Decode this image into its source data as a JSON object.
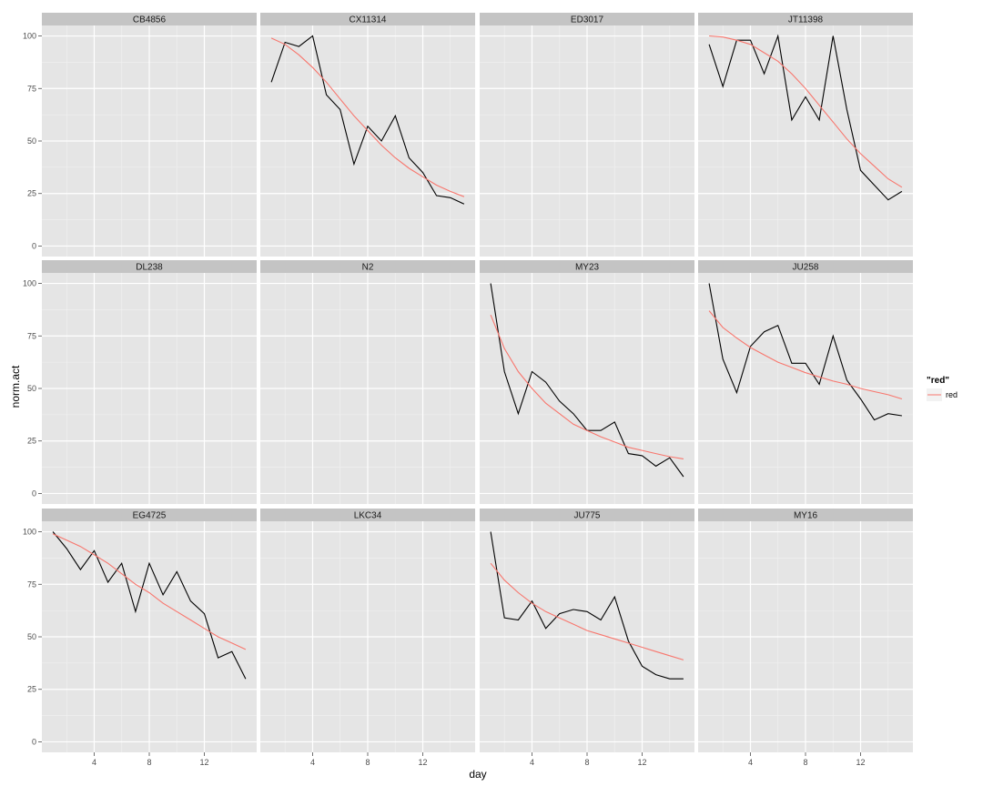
{
  "chart_data": {
    "type": "line",
    "xlabel": "day",
    "ylabel": "norm.act",
    "xlim": [
      0.2,
      15.8
    ],
    "ylim": [
      -5,
      105
    ],
    "x_ticks": [
      4,
      8,
      12
    ],
    "y_ticks": [
      0,
      25,
      50,
      75,
      100
    ],
    "grid": true,
    "legend": {
      "title": "\"red\"",
      "entries": [
        "red"
      ],
      "placement": "right"
    },
    "colors": {
      "panel_bg": "#e5e5e5",
      "strip_bg": "#c4c4c4",
      "grid_major": "#ffffff",
      "grid_minor": "#f2f2f2",
      "observed_line": "#000000",
      "fit_line": "#f8766d"
    },
    "panels": [
      {
        "label": "CB4856",
        "observed": null,
        "fit": null
      },
      {
        "label": "CX11314",
        "observed": {
          "x": [
            1,
            2,
            3,
            4,
            5,
            6,
            7,
            8,
            9,
            10,
            11,
            12,
            13,
            14,
            15
          ],
          "y": [
            78,
            97,
            95,
            100,
            72,
            65,
            39,
            57,
            50,
            62,
            42,
            35,
            24,
            23,
            20
          ]
        },
        "fit": {
          "x": [
            1,
            2,
            3,
            4,
            5,
            6,
            7,
            8,
            9,
            10,
            11,
            12,
            13,
            14,
            15
          ],
          "y": [
            99,
            96,
            91,
            85,
            78,
            70,
            62,
            55,
            48,
            42,
            37,
            33,
            29,
            26,
            23.5
          ]
        }
      },
      {
        "label": "ED3017",
        "observed": null,
        "fit": null
      },
      {
        "label": "JT11398",
        "observed": {
          "x": [
            1,
            2,
            3,
            4,
            5,
            6,
            7,
            8,
            9,
            10,
            11,
            12,
            13,
            14,
            15
          ],
          "y": [
            96,
            76,
            98,
            98,
            82,
            100,
            60,
            71,
            60,
            100,
            65,
            36,
            29,
            22,
            26
          ]
        },
        "fit": {
          "x": [
            1,
            2,
            3,
            4,
            5,
            6,
            7,
            8,
            9,
            10,
            11,
            12,
            13,
            14,
            15
          ],
          "y": [
            100,
            99.5,
            98,
            96,
            92,
            88,
            82,
            75,
            67,
            59,
            51,
            44,
            38,
            32,
            28
          ]
        }
      },
      {
        "label": "DL238",
        "observed": null,
        "fit": null
      },
      {
        "label": "N2",
        "observed": null,
        "fit": null
      },
      {
        "label": "MY23",
        "observed": {
          "x": [
            1,
            2,
            3,
            4,
            5,
            6,
            7,
            8,
            9,
            10,
            11,
            12,
            13,
            14,
            15
          ],
          "y": [
            100,
            58,
            38,
            58,
            53,
            44,
            38,
            30,
            30,
            34,
            19,
            18,
            13,
            17,
            8
          ]
        },
        "fit": {
          "x": [
            1,
            2,
            3,
            4,
            5,
            6,
            7,
            8,
            9,
            10,
            11,
            12,
            13,
            14,
            15
          ],
          "y": [
            85,
            69,
            58,
            50,
            43,
            38,
            33,
            30,
            27,
            24.5,
            22,
            20.5,
            19,
            17.5,
            16.5
          ]
        }
      },
      {
        "label": "JU258",
        "observed": {
          "x": [
            1,
            2,
            3,
            4,
            5,
            6,
            7,
            8,
            9,
            10,
            11,
            12,
            13,
            14,
            15
          ],
          "y": [
            100,
            64,
            48,
            70,
            77,
            80,
            62,
            62,
            52,
            75,
            54,
            45,
            35,
            38,
            37
          ]
        },
        "fit": {
          "x": [
            1,
            2,
            3,
            4,
            5,
            6,
            7,
            8,
            9,
            10,
            11,
            12,
            13,
            14,
            15
          ],
          "y": [
            87,
            79,
            74,
            69.5,
            66,
            62.5,
            60,
            57.5,
            55.5,
            53.5,
            52,
            50,
            48.5,
            47,
            45
          ]
        }
      },
      {
        "label": "EG4725",
        "observed": {
          "x": [
            1,
            2,
            3,
            4,
            5,
            6,
            7,
            8,
            9,
            10,
            11,
            12,
            13,
            14,
            15
          ],
          "y": [
            100,
            92,
            82,
            91,
            76,
            85,
            62,
            85,
            70,
            81,
            67,
            61,
            40,
            43,
            30
          ]
        },
        "fit": {
          "x": [
            1,
            2,
            3,
            4,
            5,
            6,
            7,
            8,
            9,
            10,
            11,
            12,
            13,
            14,
            15
          ],
          "y": [
            99,
            96,
            93,
            89,
            85,
            80,
            75,
            71,
            66,
            62,
            58,
            54,
            50,
            47,
            44
          ]
        }
      },
      {
        "label": "LKC34",
        "observed": null,
        "fit": null
      },
      {
        "label": "JU775",
        "observed": {
          "x": [
            1,
            2,
            3,
            4,
            5,
            6,
            7,
            8,
            9,
            10,
            11,
            12,
            13,
            14,
            15
          ],
          "y": [
            100,
            59,
            58,
            67,
            54,
            61,
            63,
            62,
            58,
            69,
            48,
            36,
            32,
            30,
            30
          ]
        },
        "fit": {
          "x": [
            1,
            2,
            3,
            4,
            5,
            6,
            7,
            8,
            9,
            10,
            11,
            12,
            13,
            14,
            15
          ],
          "y": [
            85,
            77,
            71,
            66,
            62,
            59,
            56,
            53,
            51,
            49,
            47,
            45,
            43,
            41,
            39
          ]
        }
      },
      {
        "label": "MY16",
        "observed": null,
        "fit": null
      }
    ]
  }
}
